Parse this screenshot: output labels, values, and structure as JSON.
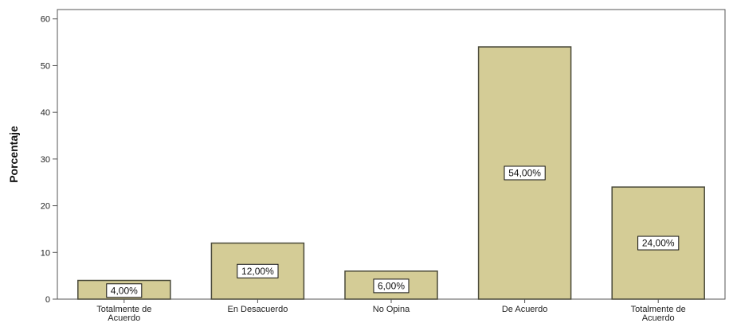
{
  "chart_data": {
    "type": "bar",
    "categories": [
      [
        "Totalmente de",
        "Acuerdo"
      ],
      [
        "En Desacuerdo"
      ],
      [
        "No Opina"
      ],
      [
        "De Acuerdo"
      ],
      [
        "Totalmente de",
        "Acuerdo"
      ]
    ],
    "values": [
      4,
      12,
      6,
      54,
      24
    ],
    "data_labels": [
      "4,00%",
      "12,00%",
      "6,00%",
      "54,00%",
      "24,00%"
    ],
    "ylabel": "Porcentaje",
    "xlabel": "",
    "ylim": [
      0,
      62
    ],
    "yticks": [
      0,
      10,
      20,
      30,
      40,
      50,
      60
    ],
    "grid": false,
    "colors": {
      "bar_fill": "#d4cc96",
      "bar_stroke": "#4a4a3a",
      "axis": "#555555"
    }
  }
}
